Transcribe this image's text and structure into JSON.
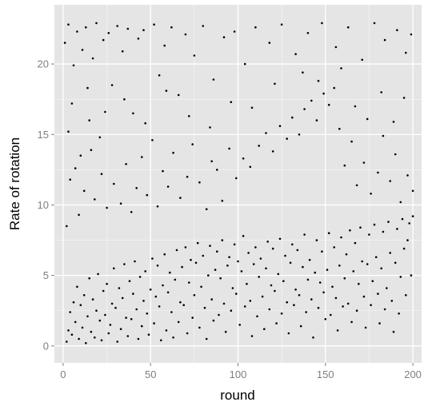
{
  "chart_data": {
    "type": "scatter",
    "title": "",
    "xlabel": "round",
    "ylabel": "Rate of rotation",
    "xlim": [
      -5,
      205
    ],
    "ylim": [
      -1.2,
      24.2
    ],
    "x_ticks": [
      0,
      50,
      100,
      150,
      200
    ],
    "y_ticks": [
      0,
      5,
      10,
      15,
      20
    ],
    "x_tick_labels": [
      "0",
      "50",
      "100",
      "150",
      "200"
    ],
    "y_tick_labels": [
      "0",
      "5",
      "10",
      "15",
      "20"
    ],
    "grid": true,
    "legend": "none",
    "panel_color": "#e5e5e5",
    "grid_color": "#ffffff",
    "point_color": "#000000",
    "series": [
      {
        "points": [
          [
            2,
            0.3
          ],
          [
            3,
            1.1
          ],
          [
            4,
            2.4
          ],
          [
            5,
            0.8
          ],
          [
            6,
            3.1
          ],
          [
            7,
            1.7
          ],
          [
            8,
            4.2
          ],
          [
            9,
            0.5
          ],
          [
            10,
            2.9
          ],
          [
            11,
            1.3
          ],
          [
            12,
            3.6
          ],
          [
            13,
            0.2
          ],
          [
            14,
            2.1
          ],
          [
            15,
            4.8
          ],
          [
            16,
            1.0
          ],
          [
            17,
            3.3
          ],
          [
            18,
            0.6
          ],
          [
            19,
            2.5
          ],
          [
            20,
            5.1
          ],
          [
            21,
            1.8
          ],
          [
            22,
            0.4
          ],
          [
            23,
            3.9
          ],
          [
            24,
            2.2
          ],
          [
            25,
            4.4
          ],
          [
            26,
            0.9
          ],
          [
            27,
            1.5
          ],
          [
            28,
            3.0
          ],
          [
            29,
            5.5
          ],
          [
            30,
            2.7
          ],
          [
            31,
            0.3
          ],
          [
            32,
            4.1
          ],
          [
            33,
            1.2
          ],
          [
            34,
            3.4
          ],
          [
            35,
            5.8
          ],
          [
            36,
            2.0
          ],
          [
            37,
            0.7
          ],
          [
            38,
            4.6
          ],
          [
            39,
            1.9
          ],
          [
            40,
            3.7
          ],
          [
            41,
            6.0
          ],
          [
            42,
            2.6
          ],
          [
            43,
            0.5
          ],
          [
            44,
            4.9
          ],
          [
            45,
            1.4
          ],
          [
            46,
            3.2
          ],
          [
            47,
            5.3
          ],
          [
            48,
            2.3
          ],
          [
            49,
            0.8
          ],
          [
            50,
            4.0
          ],
          [
            51,
            6.2
          ],
          [
            52,
            1.6
          ],
          [
            53,
            3.5
          ],
          [
            54,
            5.7
          ],
          [
            55,
            2.8
          ],
          [
            56,
            0.4
          ],
          [
            57,
            4.3
          ],
          [
            58,
            6.5
          ],
          [
            59,
            1.1
          ],
          [
            60,
            3.8
          ],
          [
            61,
            5.2
          ],
          [
            62,
            2.4
          ],
          [
            63,
            0.6
          ],
          [
            64,
            4.7
          ],
          [
            65,
            6.8
          ],
          [
            66,
            1.7
          ],
          [
            67,
            3.1
          ],
          [
            68,
            5.6
          ],
          [
            69,
            2.9
          ],
          [
            70,
            7.0
          ],
          [
            71,
            0.9
          ],
          [
            72,
            4.5
          ],
          [
            73,
            6.1
          ],
          [
            74,
            2.0
          ],
          [
            75,
            3.6
          ],
          [
            76,
            5.9
          ],
          [
            77,
            7.3
          ],
          [
            78,
            1.3
          ],
          [
            79,
            4.2
          ],
          [
            80,
            6.4
          ],
          [
            81,
            2.7
          ],
          [
            82,
            0.5
          ],
          [
            83,
            5.0
          ],
          [
            84,
            7.1
          ],
          [
            85,
            3.3
          ],
          [
            86,
            1.8
          ],
          [
            87,
            5.4
          ],
          [
            88,
            6.7
          ],
          [
            89,
            2.2
          ],
          [
            90,
            4.8
          ],
          [
            91,
            7.5
          ],
          [
            92,
            3.0
          ],
          [
            93,
            1.0
          ],
          [
            94,
            5.7
          ],
          [
            95,
            6.3
          ],
          [
            96,
            2.5
          ],
          [
            97,
            4.1
          ],
          [
            98,
            7.2
          ],
          [
            99,
            3.7
          ],
          [
            100,
            6.0
          ],
          [
            101,
            1.5
          ],
          [
            102,
            5.3
          ],
          [
            103,
            7.8
          ],
          [
            104,
            2.8
          ],
          [
            105,
            4.4
          ],
          [
            106,
            6.6
          ],
          [
            107,
            3.2
          ],
          [
            108,
            0.7
          ],
          [
            109,
            5.8
          ],
          [
            110,
            7.0
          ],
          [
            111,
            2.1
          ],
          [
            112,
            4.9
          ],
          [
            113,
            6.2
          ],
          [
            114,
            3.5
          ],
          [
            115,
            1.2
          ],
          [
            116,
            5.5
          ],
          [
            117,
            7.4
          ],
          [
            118,
            2.6
          ],
          [
            119,
            4.3
          ],
          [
            120,
            6.9
          ],
          [
            121,
            3.9
          ],
          [
            122,
            1.6
          ],
          [
            123,
            5.1
          ],
          [
            124,
            7.6
          ],
          [
            125,
            2.3
          ],
          [
            126,
            4.6
          ],
          [
            127,
            6.4
          ],
          [
            128,
            3.1
          ],
          [
            129,
            0.9
          ],
          [
            130,
            5.9
          ],
          [
            131,
            7.2
          ],
          [
            132,
            2.9
          ],
          [
            133,
            4.0
          ],
          [
            134,
            6.8
          ],
          [
            135,
            3.6
          ],
          [
            136,
            1.4
          ],
          [
            137,
            5.6
          ],
          [
            138,
            7.9
          ],
          [
            139,
            2.4
          ],
          [
            140,
            4.7
          ],
          [
            141,
            6.1
          ],
          [
            142,
            3.3
          ],
          [
            143,
            0.6
          ],
          [
            144,
            5.2
          ],
          [
            145,
            7.5
          ],
          [
            146,
            2.7
          ],
          [
            147,
            4.5
          ],
          [
            148,
            6.7
          ],
          [
            149,
            3.8
          ],
          [
            150,
            1.9
          ],
          [
            151,
            5.4
          ],
          [
            152,
            8.0
          ],
          [
            153,
            2.2
          ],
          [
            154,
            4.2
          ],
          [
            155,
            7.0
          ],
          [
            156,
            3.4
          ],
          [
            157,
            1.1
          ],
          [
            158,
            5.7
          ],
          [
            159,
            7.7
          ],
          [
            160,
            2.8
          ],
          [
            161,
            4.8
          ],
          [
            162,
            6.5
          ],
          [
            163,
            3.0
          ],
          [
            164,
            8.2
          ],
          [
            165,
            1.7
          ],
          [
            166,
            5.3
          ],
          [
            167,
            7.3
          ],
          [
            168,
            2.5
          ],
          [
            169,
            4.4
          ],
          [
            170,
            8.4
          ],
          [
            171,
            6.0
          ],
          [
            172,
            3.5
          ],
          [
            173,
            1.3
          ],
          [
            174,
            5.8
          ],
          [
            175,
            7.9
          ],
          [
            176,
            2.9
          ],
          [
            177,
            4.6
          ],
          [
            178,
            8.6
          ],
          [
            179,
            6.3
          ],
          [
            180,
            3.7
          ],
          [
            181,
            1.6
          ],
          [
            182,
            5.5
          ],
          [
            183,
            8.1
          ],
          [
            184,
            2.6
          ],
          [
            185,
            4.1
          ],
          [
            186,
            8.8
          ],
          [
            187,
            6.6
          ],
          [
            188,
            3.2
          ],
          [
            189,
            1.0
          ],
          [
            190,
            5.9
          ],
          [
            191,
            8.3
          ],
          [
            192,
            2.3
          ],
          [
            193,
            4.9
          ],
          [
            194,
            9.0
          ],
          [
            195,
            6.9
          ],
          [
            196,
            3.6
          ],
          [
            197,
            7.5
          ],
          [
            198,
            8.7
          ],
          [
            199,
            5.0
          ],
          [
            200,
            9.2
          ],
          [
            1,
            21.5
          ],
          [
            3,
            22.8
          ],
          [
            5,
            17.2
          ],
          [
            6,
            19.9
          ],
          [
            8,
            22.3
          ],
          [
            10,
            13.5
          ],
          [
            11,
            21.0
          ],
          [
            13,
            22.6
          ],
          [
            15,
            16.0
          ],
          [
            17,
            20.4
          ],
          [
            19,
            22.9
          ],
          [
            21,
            14.8
          ],
          [
            23,
            21.7
          ],
          [
            26,
            22.2
          ],
          [
            28,
            18.5
          ],
          [
            31,
            22.7
          ],
          [
            34,
            20.9
          ],
          [
            37,
            22.5
          ],
          [
            40,
            16.5
          ],
          [
            43,
            21.8
          ],
          [
            46,
            22.4
          ],
          [
            52,
            22.8
          ],
          [
            55,
            19.2
          ],
          [
            58,
            21.3
          ],
          [
            62,
            22.6
          ],
          [
            66,
            17.8
          ],
          [
            70,
            22.1
          ],
          [
            75,
            20.6
          ],
          [
            80,
            22.7
          ],
          [
            86,
            18.9
          ],
          [
            92,
            21.9
          ],
          [
            98,
            22.3
          ],
          [
            104,
            20.0
          ],
          [
            110,
            22.6
          ],
          [
            118,
            21.5
          ],
          [
            125,
            22.8
          ],
          [
            133,
            20.7
          ],
          [
            140,
            22.2
          ],
          [
            148,
            22.9
          ],
          [
            156,
            21.2
          ],
          [
            163,
            22.6
          ],
          [
            171,
            20.3
          ],
          [
            178,
            22.9
          ],
          [
            184,
            21.7
          ],
          [
            191,
            22.4
          ],
          [
            196,
            20.8
          ],
          [
            199,
            22.1
          ],
          [
            2,
            8.5
          ],
          [
            4,
            11.8
          ],
          [
            7,
            12.6
          ],
          [
            9,
            9.3
          ],
          [
            12,
            11.0
          ],
          [
            16,
            13.9
          ],
          [
            18,
            10.4
          ],
          [
            22,
            12.2
          ],
          [
            25,
            9.8
          ],
          [
            29,
            11.5
          ],
          [
            33,
            10.1
          ],
          [
            36,
            12.9
          ],
          [
            39,
            9.5
          ],
          [
            42,
            11.2
          ],
          [
            45,
            13.4
          ],
          [
            48,
            10.7
          ],
          [
            51,
            14.6
          ],
          [
            54,
            9.9
          ],
          [
            57,
            12.4
          ],
          [
            60,
            11.3
          ],
          [
            63,
            13.7
          ],
          [
            67,
            10.5
          ],
          [
            71,
            12.0
          ],
          [
            74,
            14.3
          ],
          [
            78,
            11.6
          ],
          [
            82,
            9.7
          ],
          [
            85,
            13.1
          ],
          [
            88,
            12.5
          ],
          [
            91,
            10.3
          ],
          [
            95,
            14.0
          ],
          [
            99,
            11.9
          ],
          [
            103,
            13.3
          ],
          [
            107,
            12.7
          ],
          [
            112,
            14.2
          ],
          [
            116,
            15.1
          ],
          [
            120,
            13.8
          ],
          [
            124,
            15.6
          ],
          [
            128,
            14.7
          ],
          [
            131,
            16.2
          ],
          [
            135,
            15.0
          ],
          [
            138,
            16.8
          ],
          [
            142,
            17.4
          ],
          [
            145,
            16.0
          ],
          [
            149,
            17.9
          ],
          [
            152,
            17.1
          ],
          [
            155,
            18.3
          ],
          [
            158,
            15.4
          ],
          [
            161,
            12.8
          ],
          [
            165,
            14.5
          ],
          [
            168,
            11.4
          ],
          [
            172,
            13.0
          ],
          [
            176,
            10.8
          ],
          [
            180,
            12.3
          ],
          [
            183,
            14.9
          ],
          [
            187,
            11.7
          ],
          [
            190,
            13.6
          ],
          [
            193,
            10.2
          ],
          [
            197,
            12.1
          ],
          [
            200,
            11.0
          ],
          [
            3,
            15.2
          ],
          [
            14,
            18.3
          ],
          [
            24,
            16.6
          ],
          [
            35,
            17.5
          ],
          [
            47,
            15.8
          ],
          [
            59,
            18.1
          ],
          [
            72,
            16.3
          ],
          [
            84,
            15.5
          ],
          [
            96,
            17.3
          ],
          [
            108,
            16.9
          ],
          [
            121,
            18.6
          ],
          [
            137,
            19.4
          ],
          [
            146,
            18.8
          ],
          [
            159,
            19.7
          ],
          [
            167,
            17.0
          ],
          [
            174,
            16.1
          ],
          [
            182,
            18.0
          ],
          [
            189,
            15.9
          ],
          [
            195,
            17.6
          ]
        ]
      }
    ]
  }
}
